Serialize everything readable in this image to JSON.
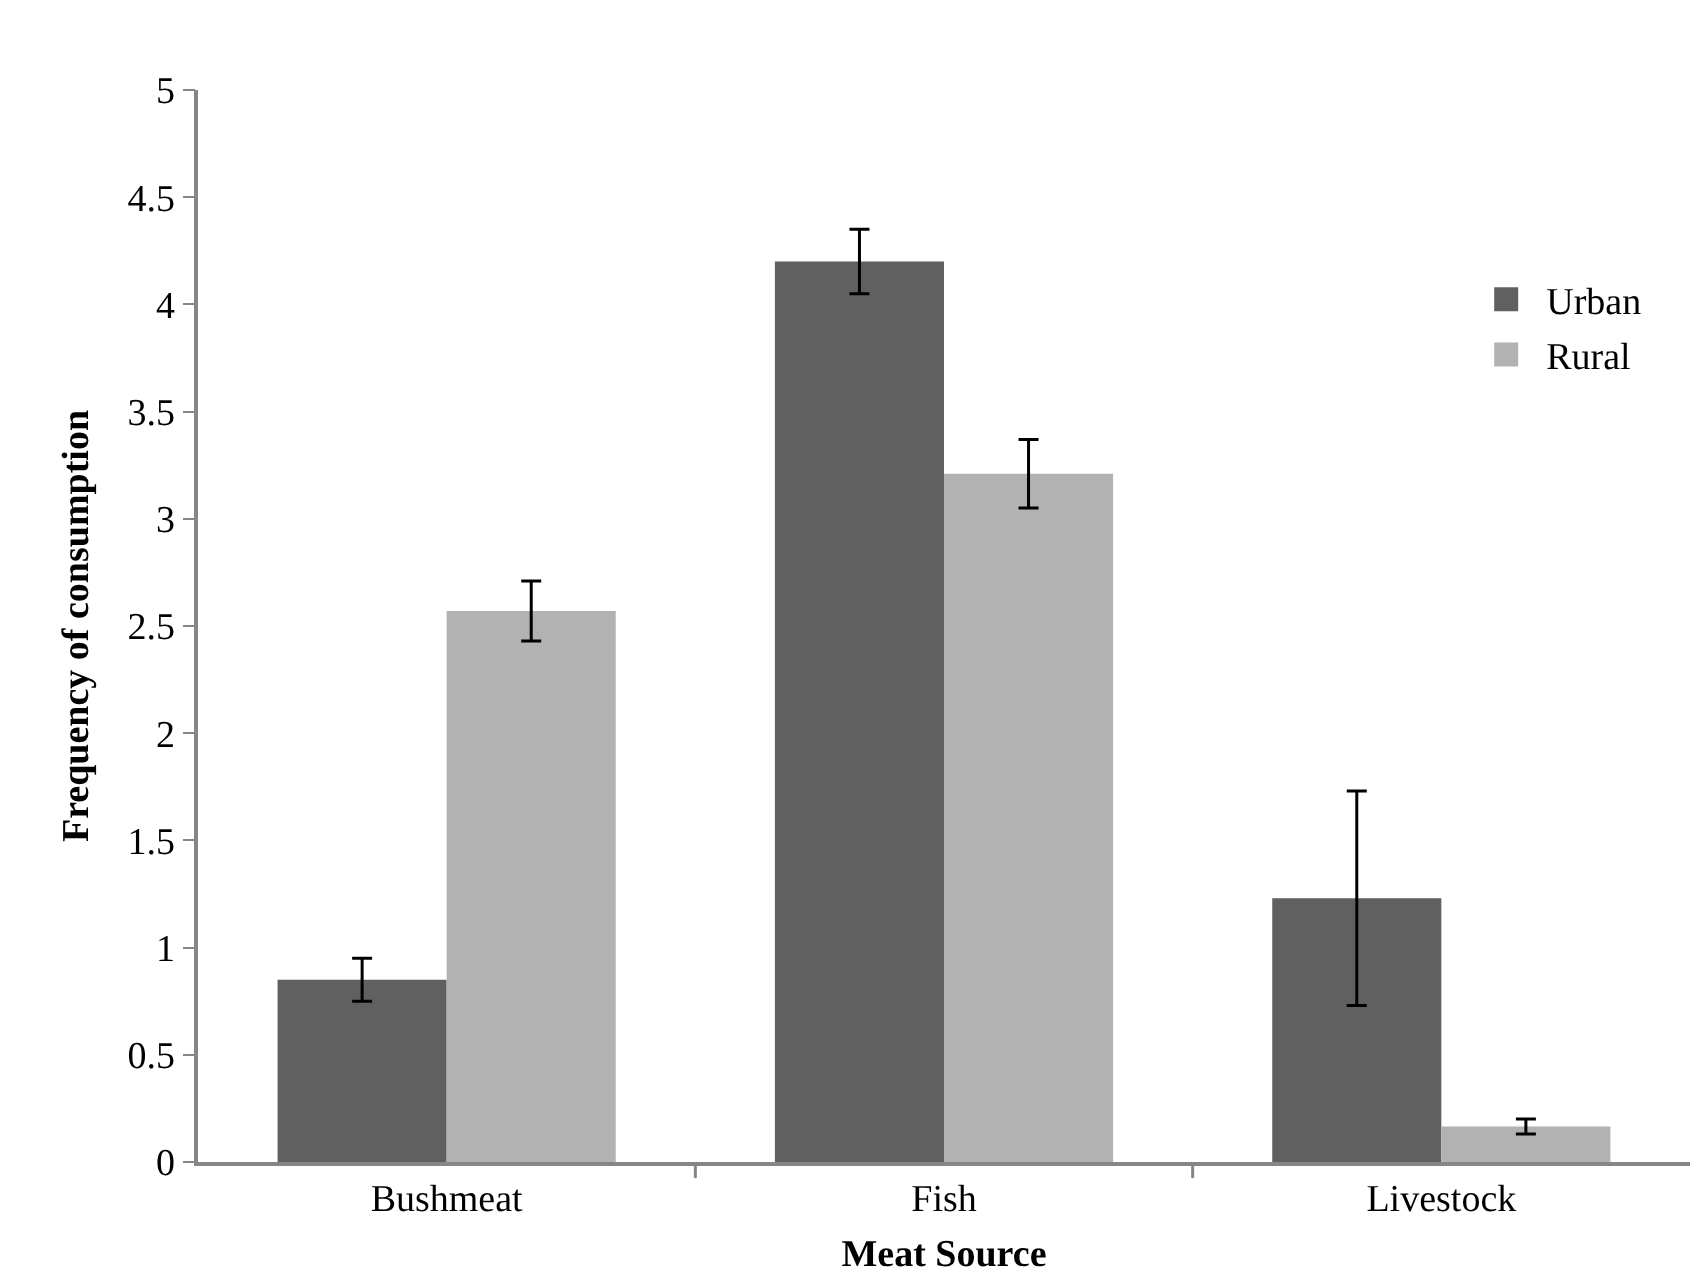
{
  "chart_data": {
    "type": "bar",
    "xlabel": "Meat Source",
    "ylabel": "Frequency of consumption",
    "categories": [
      "Bushmeat",
      "Fish",
      "Livestock"
    ],
    "series": [
      {
        "name": "Urban",
        "color": "#606060",
        "values": [
          0.85,
          4.2,
          1.23
        ],
        "errors": [
          0.1,
          0.15,
          0.5
        ]
      },
      {
        "name": "Rural",
        "color": "#b2b2b2",
        "values": [
          2.57,
          3.21,
          0.165
        ],
        "errors": [
          0.14,
          0.16,
          0.035
        ]
      }
    ],
    "ylim": [
      0,
      5
    ],
    "yticks": [
      0,
      0.5,
      1,
      1.5,
      2,
      2.5,
      3,
      3.5,
      4,
      4.5,
      5
    ],
    "grid": false,
    "legend": "top right"
  }
}
